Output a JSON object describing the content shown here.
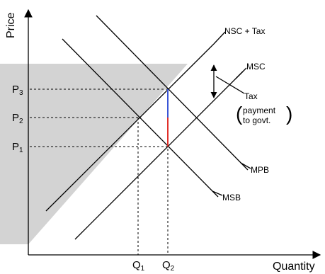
{
  "axes": {
    "y_label": "Price",
    "x_label": "Quantity"
  },
  "curves": {
    "nsc_tax": "NSC + Tax",
    "msc": "MSC",
    "mpb": "MPB",
    "msb": "MSB"
  },
  "tax_note": {
    "title": "Tax",
    "line1": "payment",
    "line2": "to govt."
  },
  "prices": {
    "p3": "P",
    "p3_sub": "3",
    "p2": "P",
    "p2_sub": "2",
    "p1": "P",
    "p1_sub": "1"
  },
  "quantities": {
    "q1": "Q",
    "q1_sub": "1",
    "q2": "Q",
    "q2_sub": "2"
  },
  "colors": {
    "shade": "#d3d3d3",
    "tax_upper": "#3a55d6",
    "tax_lower": "#e0302a"
  }
}
